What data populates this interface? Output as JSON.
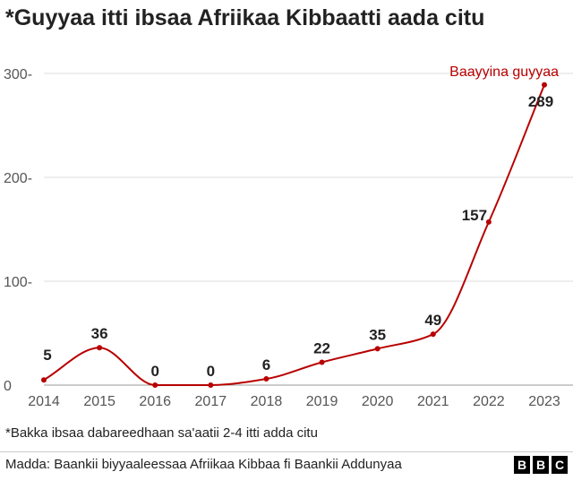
{
  "title": "*Guyyaa itti ibsaa Afriikaa Kibbaatti aada citu",
  "note": "*Bakka ibsaa dabareedhaan sa'aatii 2-4 itti adda citu",
  "source": "Madda: Baankii biyyaaleessaa Afriikaa Kibbaa fi Baankii Addunyaa",
  "logo_letters": [
    "B",
    "B",
    "C"
  ],
  "colors": {
    "line": "#b80000",
    "grid": "#dddddd",
    "text": "#222222",
    "axis_text": "#555555"
  },
  "chart_data": {
    "type": "line",
    "title": "*Guyyaa itti ibsaa Afriikaa Kibbaatti aada citu",
    "xlabel": "",
    "ylabel": "",
    "x": [
      "2014",
      "2015",
      "2016",
      "2017",
      "2018",
      "2019",
      "2020",
      "2021",
      "2022",
      "2023"
    ],
    "series": [
      {
        "name": "Baayyina guyyaa",
        "values": [
          5,
          36,
          0,
          0,
          6,
          22,
          35,
          49,
          157,
          289
        ]
      }
    ],
    "data_labels": [
      "5",
      "36",
      "0",
      "0",
      "6",
      "22",
      "35",
      "49",
      "157",
      "289"
    ],
    "ylim": [
      0,
      300
    ],
    "yticks": [
      0,
      100,
      200,
      300
    ],
    "ytick_labels": [
      "0",
      "100-",
      "200-",
      "300-"
    ],
    "grid": true,
    "legend": "series label at end of line, top-right"
  }
}
